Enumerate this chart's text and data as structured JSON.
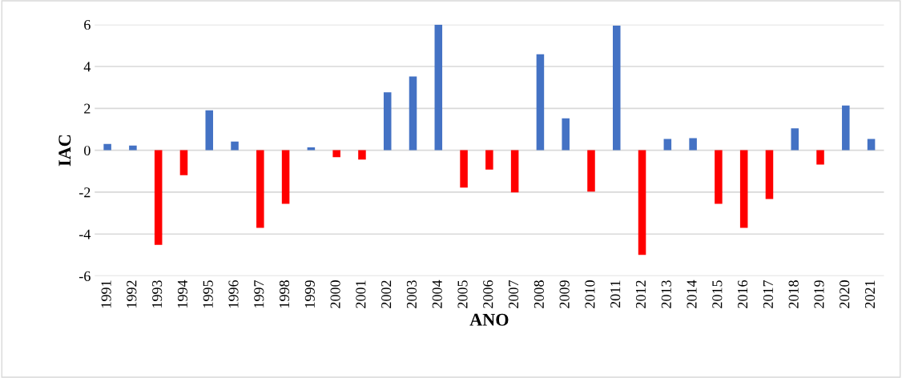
{
  "chart_data": {
    "type": "bar",
    "xlabel": "ANO",
    "ylabel": "IAC",
    "categories": [
      "1991",
      "1992",
      "1993",
      "1994",
      "1995",
      "1996",
      "1997",
      "1998",
      "1999",
      "2000",
      "2001",
      "2002",
      "2003",
      "2004",
      "2005",
      "2006",
      "2007",
      "2008",
      "2009",
      "2010",
      "2011",
      "2012",
      "2013",
      "2014",
      "2015",
      "2016",
      "2017",
      "2018",
      "2019",
      "2020",
      "2021"
    ],
    "values": [
      0.3,
      0.22,
      -4.52,
      -1.19,
      1.91,
      0.42,
      -3.7,
      -2.56,
      0.14,
      -0.33,
      -0.44,
      2.77,
      3.52,
      6.0,
      -1.78,
      -0.92,
      -2.01,
      4.58,
      1.52,
      -1.97,
      5.95,
      -4.99,
      0.54,
      0.58,
      -2.56,
      -3.7,
      -2.33,
      1.05,
      -0.68,
      2.14,
      0.54
    ],
    "colors": [
      "#4472c4",
      "#4472c4",
      "#ff0000",
      "#ff0000",
      "#4472c4",
      "#4472c4",
      "#ff0000",
      "#ff0000",
      "#4472c4",
      "#ff0000",
      "#ff0000",
      "#4472c4",
      "#4472c4",
      "#4472c4",
      "#ff0000",
      "#ff0000",
      "#ff0000",
      "#4472c4",
      "#4472c4",
      "#ff0000",
      "#4472c4",
      "#ff0000",
      "#4472c4",
      "#4472c4",
      "#ff0000",
      "#ff0000",
      "#ff0000",
      "#4472c4",
      "#ff0000",
      "#4472c4",
      "#4472c4"
    ],
    "ylim": [
      -6,
      6
    ],
    "yticks": [
      -6,
      -4,
      -2,
      0,
      2,
      4,
      6
    ],
    "grid": "y",
    "legend": false
  }
}
